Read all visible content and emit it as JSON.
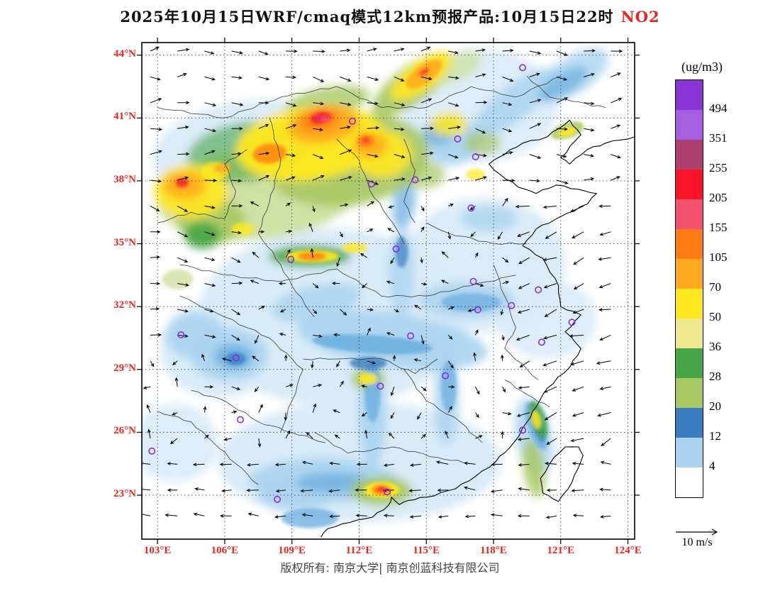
{
  "title": {
    "main": "2025年10月15日WRF/cmaq模式12km预报产品:10月15日22时",
    "species": "NO2"
  },
  "footer": "版权所有: 南京大学| 南京创蓝科技有限公司",
  "wind_scale": {
    "label": "10 m/s"
  },
  "axes": {
    "x_ticks": [
      "103°E",
      "106°E",
      "109°E",
      "112°E",
      "115°E",
      "118°E",
      "121°E",
      "124°E"
    ],
    "x_values": [
      103,
      106,
      109,
      112,
      115,
      118,
      121,
      124
    ],
    "y_ticks": [
      "44°N",
      "41°N",
      "38°N",
      "35°N",
      "32°N",
      "29°N",
      "26°N",
      "23°N"
    ],
    "y_values": [
      44,
      41,
      38,
      35,
      32,
      29,
      26,
      23
    ]
  },
  "legend": {
    "units": "(ug/m3)",
    "bands": [
      "#8a35d6",
      "#a55fe0",
      "#ad3f6e",
      "#fa1428",
      "#f4516e",
      "#ff7c14",
      "#ffaa1e",
      "#ffe81e",
      "#efe88e",
      "#46a546",
      "#a8c863",
      "#3a7ec2",
      "#aad4f0",
      "#ffffff"
    ],
    "labels": [
      "494",
      "351",
      "255",
      "205",
      "155",
      "105",
      "70",
      "50",
      "36",
      "28",
      "20",
      "12",
      "4"
    ]
  },
  "map": {
    "extent": {
      "lon_min": 102.3,
      "lon_max": 124.3,
      "lat_min": 20.9,
      "lat_max": 44.6
    },
    "palette": {
      "b1": "#d9ebf8",
      "b2": "#aad4f0",
      "b3": "#6fb0e0",
      "b4": "#3a7ec2",
      "g1": "#cfe0a0",
      "g2": "#a8c863",
      "g3": "#46a546",
      "y1": "#efe88e",
      "y2": "#ffe81e",
      "o1": "#ffaa1e",
      "o2": "#ff7c14",
      "r2": "#fa1e28",
      "r3": "#f4516e",
      "m1": "#d23a8e"
    },
    "field_blobs": [
      [
        110.8,
        31.5,
        190,
        125,
        0,
        "b1",
        1
      ],
      [
        112,
        24.6,
        200,
        85,
        0,
        "b1",
        1
      ],
      [
        117.6,
        34,
        115,
        95,
        0,
        "b1",
        0.95
      ],
      [
        105.8,
        30,
        85,
        70,
        0,
        "b1",
        1
      ],
      [
        108,
        39,
        165,
        85,
        0,
        "b1",
        0.95
      ],
      [
        117.4,
        41.6,
        110,
        80,
        0,
        "b1",
        0.9
      ],
      [
        120.4,
        31.4,
        70,
        55,
        0,
        "b1",
        0.9
      ],
      [
        103.8,
        25.5,
        60,
        55,
        0,
        "b1",
        0.9
      ],
      [
        113.5,
        30.4,
        135,
        38,
        8,
        "b2",
        0.9
      ],
      [
        110.4,
        23.7,
        105,
        32,
        0,
        "b2",
        0.9
      ],
      [
        106.2,
        29.7,
        55,
        38,
        0,
        "b2",
        0.9
      ],
      [
        116.8,
        32.3,
        68,
        26,
        0,
        "b2",
        0.85
      ],
      [
        112.6,
        26.9,
        20,
        75,
        0,
        "b2",
        0.9
      ],
      [
        115.9,
        27.6,
        18,
        65,
        0,
        "b2",
        0.85
      ],
      [
        118.9,
        41.7,
        75,
        24,
        -38,
        "b2",
        0.85
      ],
      [
        116.1,
        39.9,
        42,
        34,
        0,
        "b2",
        0.9
      ],
      [
        104.7,
        30.6,
        42,
        33,
        0,
        "b2",
        0.9
      ],
      [
        110.1,
        32.2,
        65,
        24,
        -12,
        "b2",
        0.85
      ],
      [
        119.8,
        25.8,
        26,
        55,
        -12,
        "b2",
        0.8
      ],
      [
        113.9,
        33.6,
        18,
        65,
        0,
        "b2",
        0.8
      ],
      [
        121.6,
        43.1,
        55,
        26,
        -32,
        "b2",
        0.8
      ],
      [
        109.2,
        23,
        55,
        22,
        0,
        "b2",
        0.85
      ],
      [
        117.8,
        36.2,
        40,
        18,
        0,
        "b2",
        0.8
      ],
      [
        112.6,
        30.2,
        85,
        13,
        4,
        "b3",
        0.9
      ],
      [
        106.4,
        29.6,
        28,
        18,
        0,
        "b3",
        0.9
      ],
      [
        112.6,
        27.9,
        11,
        42,
        0,
        "b3",
        0.85
      ],
      [
        117,
        32.2,
        42,
        13,
        0,
        "b3",
        0.8
      ],
      [
        110.9,
        23.6,
        55,
        15,
        0,
        "b3",
        0.8
      ],
      [
        116,
        28.2,
        11,
        36,
        0,
        "b3",
        0.8
      ],
      [
        119.9,
        26.3,
        12,
        36,
        -18,
        "b3",
        0.8
      ],
      [
        115.6,
        40.3,
        22,
        18,
        0,
        "b3",
        0.8
      ],
      [
        114,
        36.9,
        16,
        36,
        8,
        "b3",
        0.75
      ],
      [
        121.1,
        42.6,
        40,
        16,
        -32,
        "b3",
        0.75
      ],
      [
        109.8,
        21.9,
        40,
        14,
        0,
        "b3",
        0.8
      ],
      [
        112.4,
        29.3,
        26,
        9,
        0,
        "b4",
        0.8
      ],
      [
        106.5,
        29.5,
        14,
        9,
        0,
        "b4",
        0.8
      ],
      [
        113.9,
        34.6,
        9,
        22,
        0,
        "b4",
        0.7
      ],
      [
        120,
        26.2,
        7,
        22,
        -18,
        "b4",
        0.7
      ],
      [
        107.5,
        37.4,
        145,
        65,
        -6,
        "g1",
        0.95
      ],
      [
        111.5,
        39,
        115,
        65,
        -8,
        "g2",
        0.9
      ],
      [
        105.4,
        36.1,
        48,
        33,
        0,
        "g2",
        0.9
      ],
      [
        109.8,
        34.4,
        58,
        15,
        0,
        "g3",
        0.9
      ],
      [
        105,
        35.4,
        26,
        19,
        0,
        "g3",
        0.9
      ],
      [
        114.4,
        42.6,
        68,
        26,
        -36,
        "g2",
        0.9
      ],
      [
        107,
        39.4,
        85,
        42,
        -8,
        "g3",
        0.6
      ],
      [
        113,
        23.2,
        44,
        21,
        0,
        "g2",
        0.9
      ],
      [
        119.8,
        24.3,
        15,
        42,
        -8,
        "g2",
        0.85
      ],
      [
        120,
        26.6,
        11,
        28,
        -18,
        "g3",
        0.8
      ],
      [
        112.4,
        28.55,
        24,
        16,
        0,
        "g2",
        0.9
      ],
      [
        121.3,
        40.4,
        24,
        11,
        -18,
        "g2",
        0.85
      ],
      [
        116.4,
        43.4,
        38,
        18,
        -28,
        "g1",
        0.75
      ],
      [
        103.9,
        33.3,
        22,
        14,
        0,
        "g1",
        0.8
      ],
      [
        110.6,
        41.8,
        60,
        20,
        -10,
        "g2",
        0.8
      ],
      [
        114.9,
        38.3,
        30,
        20,
        0,
        "g2",
        0.7
      ],
      [
        117.5,
        39.8,
        26,
        16,
        0,
        "g2",
        0.7
      ],
      [
        109.8,
        39.8,
        105,
        52,
        -8,
        "y2",
        0.95
      ],
      [
        104.5,
        37.5,
        52,
        38,
        0,
        "y2",
        0.9
      ],
      [
        113,
        39.3,
        42,
        33,
        0,
        "y2",
        0.9
      ],
      [
        114.8,
        43,
        52,
        20,
        -36,
        "y2",
        0.9
      ],
      [
        109.9,
        34.4,
        38,
        9,
        0,
        "y2",
        0.9
      ],
      [
        116,
        40.7,
        26,
        17,
        0,
        "y2",
        0.85
      ],
      [
        112.4,
        28.55,
        13,
        8,
        0,
        "y2",
        0.9
      ],
      [
        113,
        23.25,
        25,
        11,
        0,
        "y2",
        0.95
      ],
      [
        119.9,
        26.6,
        6,
        13,
        -14,
        "y2",
        0.85
      ],
      [
        121.3,
        40.35,
        13,
        6,
        -18,
        "y2",
        0.9
      ],
      [
        106.8,
        35.7,
        16,
        9,
        0,
        "y2",
        0.8
      ],
      [
        111.8,
        34.8,
        18,
        7,
        0,
        "y2",
        0.8
      ],
      [
        117.2,
        38.3,
        14,
        8,
        0,
        "y2",
        0.7
      ],
      [
        105.6,
        38.5,
        20,
        12,
        0,
        "y2",
        0.8
      ],
      [
        110.4,
        40.7,
        50,
        26,
        -8,
        "o1",
        0.95
      ],
      [
        104.2,
        37.8,
        30,
        20,
        0,
        "o1",
        0.9
      ],
      [
        112.5,
        39.7,
        24,
        18,
        0,
        "o1",
        0.9
      ],
      [
        114.9,
        43.1,
        30,
        13,
        -36,
        "o1",
        0.9
      ],
      [
        108,
        39.3,
        24,
        14,
        -6,
        "o2",
        0.8
      ],
      [
        109.9,
        34.4,
        20,
        6,
        0,
        "o2",
        0.85
      ],
      [
        113,
        23.25,
        14,
        7,
        0,
        "o2",
        0.95
      ],
      [
        110.2,
        40.9,
        28,
        15,
        -8,
        "o2",
        0.9
      ],
      [
        112.3,
        39.9,
        12,
        9,
        0,
        "o2",
        0.85
      ],
      [
        105.9,
        38.6,
        12,
        7,
        0,
        "o1",
        0.8
      ],
      [
        110.3,
        41,
        15,
        8,
        -8,
        "r2",
        0.95
      ],
      [
        104.1,
        37.9,
        9,
        6,
        0,
        "r2",
        0.9
      ],
      [
        113,
        23.3,
        6,
        4,
        0,
        "r2",
        0.95
      ],
      [
        110.5,
        40.95,
        7,
        4,
        0,
        "r3",
        0.95
      ],
      [
        112.3,
        39.95,
        5,
        4,
        0,
        "r2",
        0.8
      ],
      [
        114.9,
        43.2,
        9,
        4,
        -36,
        "r2",
        0.75
      ],
      [
        110.15,
        41.05,
        3.5,
        2.5,
        0,
        "m1",
        0.9
      ]
    ],
    "city_markers": [
      [
        116.4,
        40.0
      ],
      [
        117.2,
        39.15
      ],
      [
        114.5,
        38.05
      ],
      [
        112.55,
        37.85
      ],
      [
        111.7,
        40.85
      ],
      [
        117.0,
        36.7
      ],
      [
        113.65,
        34.75
      ],
      [
        108.95,
        34.25
      ],
      [
        117.1,
        33.2
      ],
      [
        118.8,
        32.05
      ],
      [
        120.0,
        32.8
      ],
      [
        121.5,
        31.25
      ],
      [
        120.15,
        30.3
      ],
      [
        114.3,
        30.6
      ],
      [
        115.85,
        28.7
      ],
      [
        112.95,
        28.2
      ],
      [
        119.3,
        26.1
      ],
      [
        113.25,
        23.15
      ],
      [
        106.5,
        29.55
      ],
      [
        104.05,
        30.65
      ],
      [
        106.7,
        26.6
      ],
      [
        102.75,
        25.1
      ],
      [
        108.35,
        22.8
      ],
      [
        119.3,
        43.4
      ],
      [
        117.3,
        31.85
      ]
    ]
  }
}
